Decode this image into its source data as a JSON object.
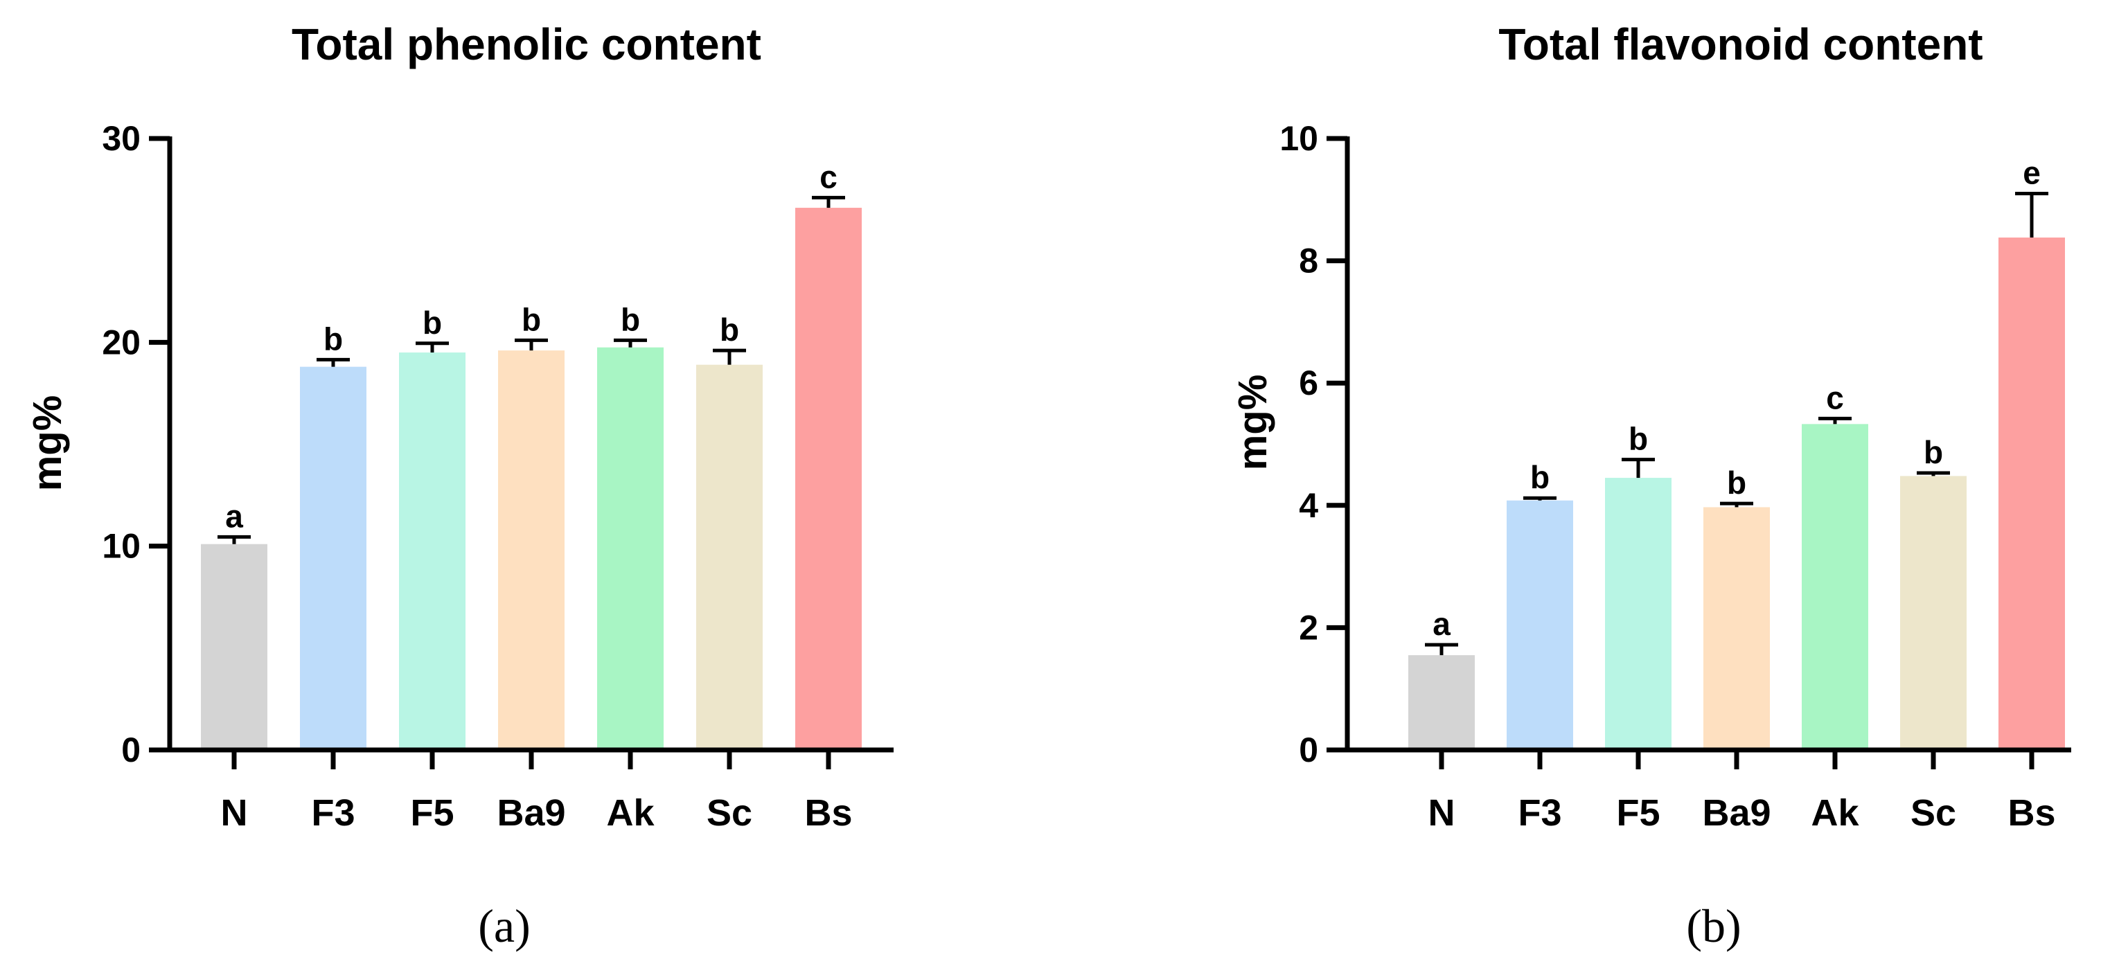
{
  "chart_data": [
    {
      "type": "bar",
      "title": "Total phenolic content",
      "ylabel": "mg%",
      "xlabel": "",
      "ylim": [
        0,
        30
      ],
      "yticks": [
        0,
        10,
        20,
        30
      ],
      "categories": [
        "N",
        "F3",
        "F5",
        "Ba9",
        "Ak",
        "Sc",
        "Bs"
      ],
      "values": [
        10.1,
        18.8,
        19.5,
        19.6,
        19.75,
        18.9,
        26.6
      ],
      "errors": [
        0.35,
        0.35,
        0.45,
        0.5,
        0.35,
        0.7,
        0.5
      ],
      "significance": [
        "a",
        "b",
        "b",
        "b",
        "b",
        "b",
        "c"
      ],
      "colors": [
        "#d4d4d4",
        "#bddcfa",
        "#b8f5e4",
        "#fee0c0",
        "#a8f5c4",
        "#ede6cb",
        "#fda0a0"
      ],
      "panel_label": "(a)"
    },
    {
      "type": "bar",
      "title": "Total flavonoid content",
      "ylabel": "mg%",
      "xlabel": "",
      "ylim": [
        0,
        10
      ],
      "yticks": [
        0,
        2,
        4,
        6,
        8,
        10
      ],
      "categories": [
        "N",
        "F3",
        "F5",
        "Ba9",
        "Ak",
        "Sc",
        "Bs"
      ],
      "values": [
        1.55,
        4.08,
        4.45,
        3.97,
        5.33,
        4.48,
        8.38
      ],
      "errors": [
        0.17,
        0.04,
        0.3,
        0.06,
        0.09,
        0.05,
        0.72
      ],
      "significance": [
        "a",
        "b",
        "b",
        "b",
        "c",
        "b",
        "e"
      ],
      "colors": [
        "#d4d4d4",
        "#bddcfa",
        "#b8f5e4",
        "#fee0c0",
        "#a8f5c4",
        "#ede6cb",
        "#fda0a0"
      ],
      "panel_label": "(b)"
    }
  ]
}
